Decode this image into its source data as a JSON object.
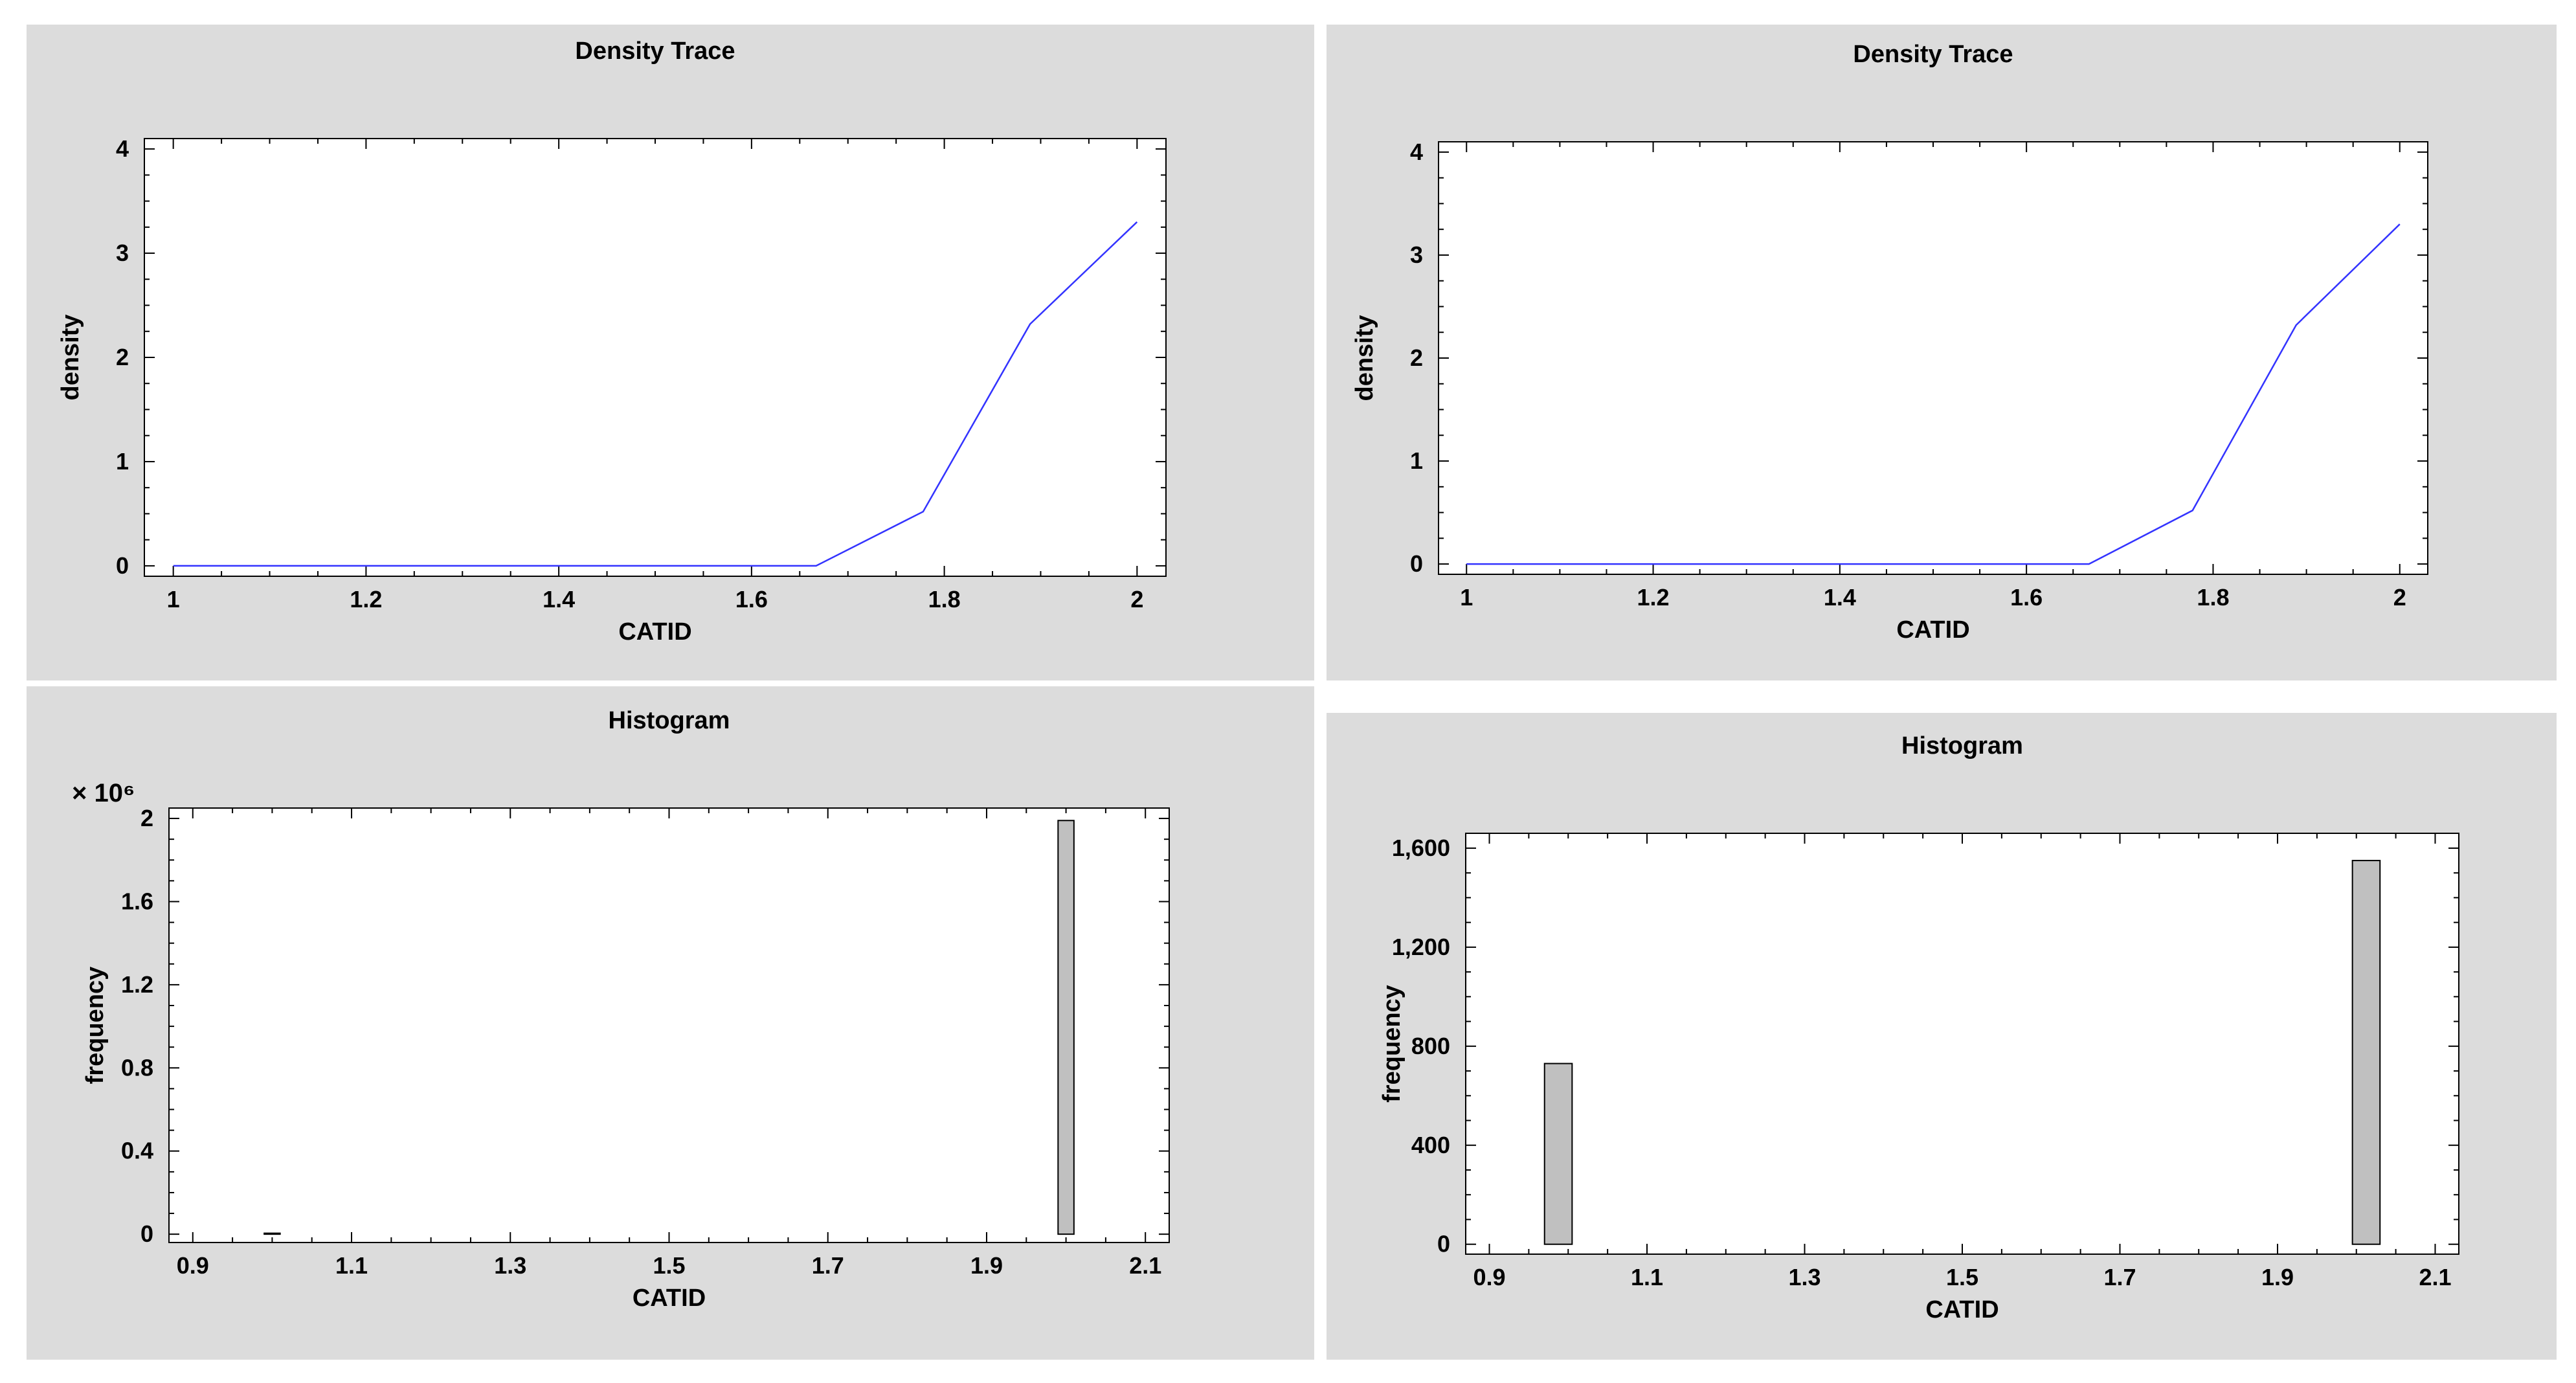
{
  "colors": {
    "panel_bg": "#dcdcdc",
    "plot_bg": "#ffffff",
    "density_line": "#3333ff",
    "bar_fill": "#c0c0c0",
    "bar_stroke": "#000000"
  },
  "chart_data": [
    {
      "type": "line",
      "title": "Density Trace",
      "xlabel": "CATID",
      "ylabel": "density",
      "xlim": [
        0.97,
        2.03
      ],
      "ylim": [
        -0.1,
        4.1
      ],
      "xticks": [
        1,
        1.2,
        1.4,
        1.6,
        1.8,
        2
      ],
      "xtick_labels": [
        "1",
        "1.2",
        "1.4",
        "1.6",
        "1.8",
        "2"
      ],
      "yticks": [
        0,
        1,
        2,
        3,
        4
      ],
      "ytick_labels": [
        "0",
        "1",
        "2",
        "3",
        "4"
      ],
      "grid": false,
      "series": [
        {
          "x": [
            1,
            1.667,
            1.778,
            1.889,
            2
          ],
          "y": [
            0,
            0,
            0.52,
            2.32,
            3.3
          ]
        }
      ]
    },
    {
      "type": "line",
      "title": "Density Trace",
      "xlabel": "CATID",
      "ylabel": "density",
      "xlim": [
        0.97,
        2.03
      ],
      "ylim": [
        -0.1,
        4.1
      ],
      "xticks": [
        1,
        1.2,
        1.4,
        1.6,
        1.8,
        2
      ],
      "xtick_labels": [
        "1",
        "1.2",
        "1.4",
        "1.6",
        "1.8",
        "2"
      ],
      "yticks": [
        0,
        1,
        2,
        3,
        4
      ],
      "ytick_labels": [
        "0",
        "1",
        "2",
        "3",
        "4"
      ],
      "grid": false,
      "series": [
        {
          "x": [
            1,
            1.667,
            1.778,
            1.889,
            2
          ],
          "y": [
            0,
            0,
            0.52,
            2.32,
            3.3
          ]
        }
      ]
    },
    {
      "type": "bar",
      "title": "Histogram",
      "xlabel": "CATID",
      "ylabel": "frequency",
      "y_multiplier_label": "× 10⁶",
      "xlim": [
        0.87,
        2.13
      ],
      "ylim": [
        -0.04,
        2.05
      ],
      "xticks": [
        0.9,
        1.1,
        1.3,
        1.5,
        1.7,
        1.9,
        2.1
      ],
      "xtick_labels": [
        "0.9",
        "1.1",
        "1.3",
        "1.5",
        "1.7",
        "1.9",
        "2.1"
      ],
      "yticks": [
        0,
        0.4,
        0.8,
        1.2,
        1.6,
        2
      ],
      "ytick_labels": [
        "0",
        "0.4",
        "0.8",
        "1.2",
        "1.6",
        "2"
      ],
      "grid": false,
      "bars": [
        {
          "x0": 0.99,
          "x1": 1.01,
          "value": 0.0007
        },
        {
          "x0": 1.99,
          "x1": 2.01,
          "value": 1.99
        }
      ]
    },
    {
      "type": "bar",
      "title": "Histogram",
      "xlabel": "CATID",
      "ylabel": "frequency",
      "xlim": [
        0.87,
        2.13
      ],
      "ylim": [
        -40,
        1660
      ],
      "xticks": [
        0.9,
        1.1,
        1.3,
        1.5,
        1.7,
        1.9,
        2.1
      ],
      "xtick_labels": [
        "0.9",
        "1.1",
        "1.3",
        "1.5",
        "1.7",
        "1.9",
        "2.1"
      ],
      "yticks": [
        0,
        400,
        800,
        1200,
        1600
      ],
      "ytick_labels": [
        "0",
        "400",
        "800",
        "1,200",
        "1,600"
      ],
      "grid": false,
      "bars": [
        {
          "x0": 0.97,
          "x1": 1.005,
          "value": 730
        },
        {
          "x0": 1.995,
          "x1": 2.03,
          "value": 1550
        }
      ]
    }
  ]
}
